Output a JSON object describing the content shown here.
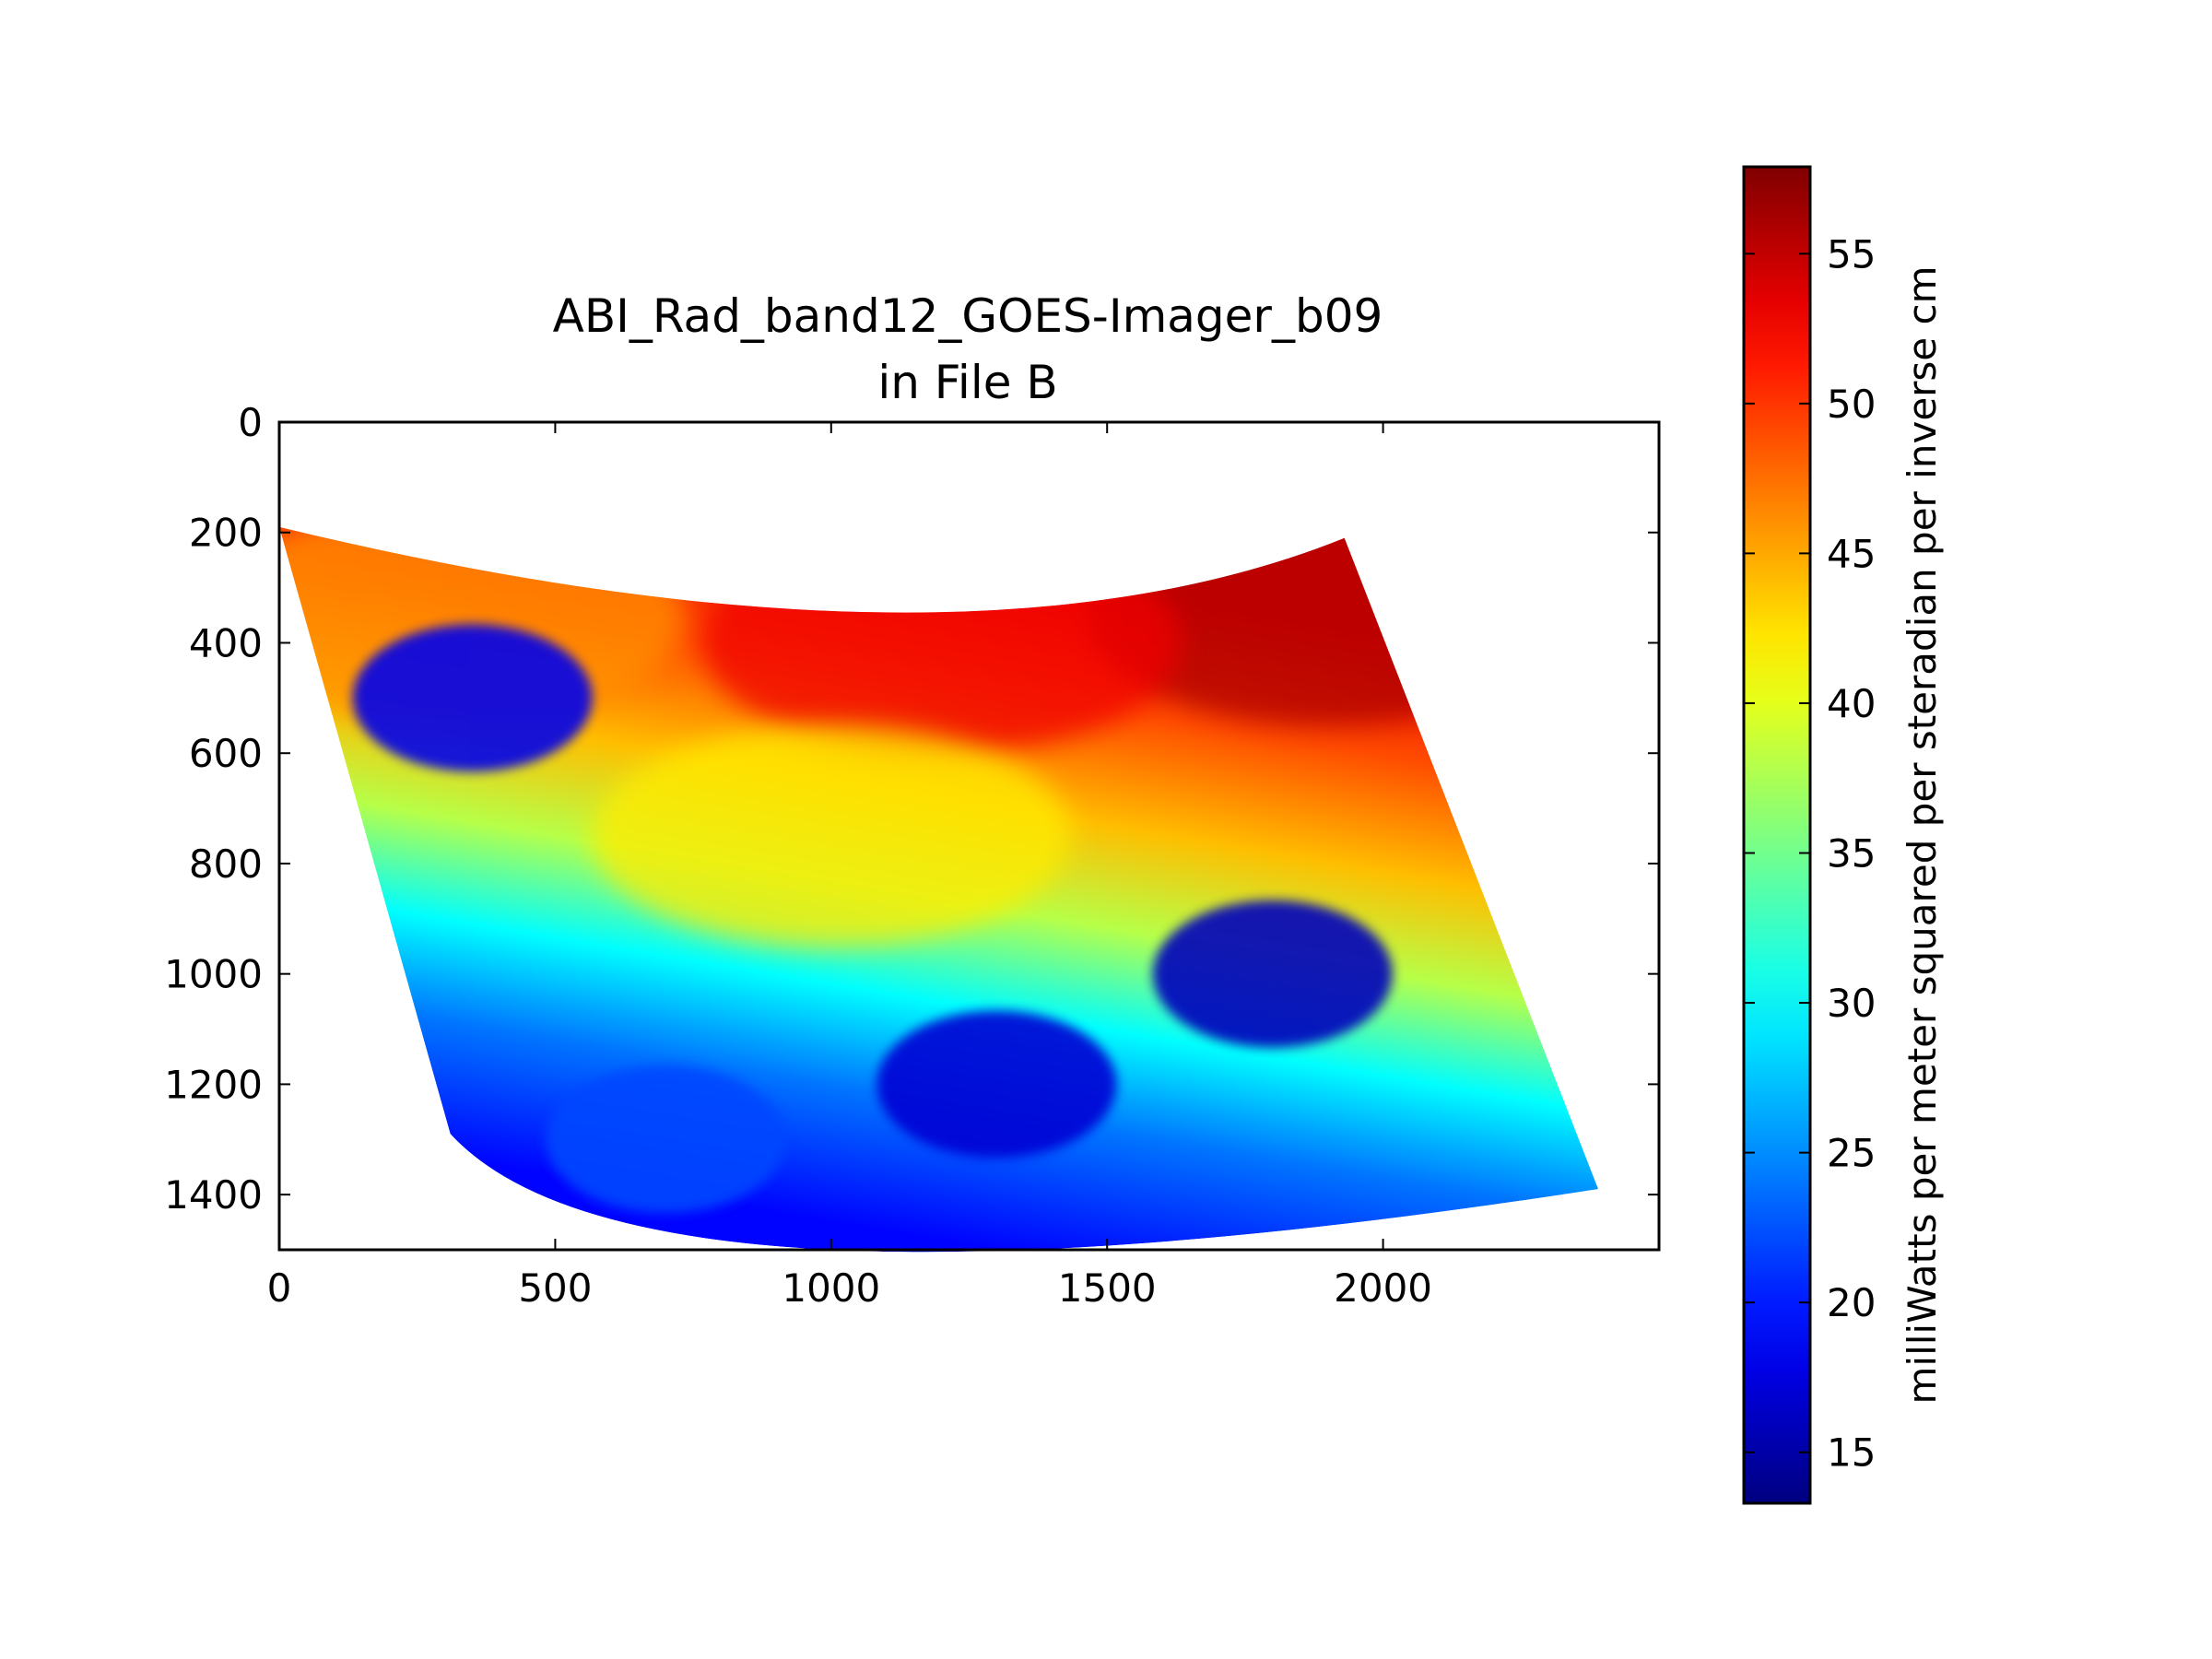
{
  "chart_data": {
    "type": "heatmap",
    "title": "ABI_Rad_band12_GOES-Imager_b09",
    "subtitle": "in File B",
    "xlabel": "",
    "ylabel": "",
    "xlim": [
      0,
      2500
    ],
    "ylim": [
      1500,
      0
    ],
    "y_inverted": true,
    "grid": false,
    "x_ticks": [
      0,
      500,
      1000,
      1500,
      2000
    ],
    "x_tick_labels": [
      "0",
      "500",
      "1000",
      "1500",
      "2000"
    ],
    "y_ticks": [
      0,
      200,
      400,
      600,
      800,
      1000,
      1200,
      1400
    ],
    "y_tick_labels": [
      "0",
      "200",
      "400",
      "600",
      "800",
      "1000",
      "1200",
      "1400"
    ],
    "colormap": "jet",
    "colorbar": {
      "label": "milliWatts per meter squared per steradian per inverse cm",
      "range": [
        13.3,
        57.9
      ],
      "ticks": [
        15,
        20,
        25,
        30,
        35,
        40,
        45,
        50,
        55
      ],
      "tick_labels": [
        "15",
        "20",
        "25",
        "30",
        "35",
        "40",
        "45",
        "50",
        "55"
      ],
      "placement": "right"
    },
    "data_region": {
      "corners": {
        "top_left": [
          0,
          190
        ],
        "top_right": [
          1930,
          210
        ],
        "bottom_right": [
          2390,
          1390
        ],
        "bottom_left": [
          310,
          1290
        ]
      },
      "top_edge_lowest": [
        1100,
        345
      ],
      "bottom_edge_lowest": [
        1000,
        1500
      ]
    },
    "features": [
      {
        "description": "high radiance north-east",
        "x": 1900,
        "y": 350,
        "value": 56
      },
      {
        "description": "high radiance north-central",
        "x": 1200,
        "y": 400,
        "value": 53
      },
      {
        "description": "mid radiance north-west",
        "x": 300,
        "y": 350,
        "value": 46
      },
      {
        "description": "central band",
        "x": 1000,
        "y": 750,
        "value": 42
      },
      {
        "description": "southern region",
        "x": 700,
        "y": 1300,
        "value": 22
      },
      {
        "description": "cold cloud band north-west",
        "x": 350,
        "y": 500,
        "value": 18
      },
      {
        "description": "cold cloud cluster east",
        "x": 1800,
        "y": 1000,
        "value": 16
      },
      {
        "description": "cold cloud swirl south-central",
        "x": 1300,
        "y": 1200,
        "value": 17
      }
    ]
  }
}
